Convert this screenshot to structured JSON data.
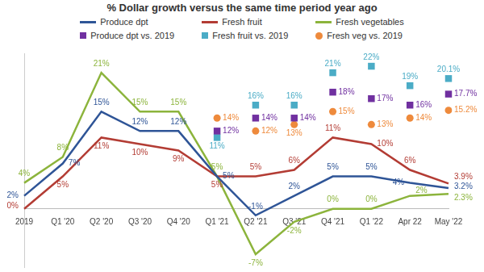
{
  "chart_data": {
    "type": "line",
    "title": "% Dollar growth versus the same time period year ago",
    "categories": [
      "2019",
      "Q1 '20",
      "Q2 '20",
      "Q3 '20",
      "Q4 '20",
      "Q1 '21",
      "Q2 '21",
      "Q3 '21",
      "Q4 '21",
      "Q1 '22",
      "Apr 22",
      "May '22"
    ],
    "series": [
      {
        "name": "Produce dpt",
        "type": "line",
        "marker": "none",
        "color": "#2f5597",
        "values": [
          2,
          7,
          15,
          12,
          12,
          5,
          -1,
          2,
          5,
          5,
          4,
          3.2
        ],
        "value_labels": [
          "2%",
          "7%",
          "15%",
          "12%",
          "12%",
          "5%",
          "-1%",
          "2%",
          "5%",
          "5%",
          "4%",
          "3.2%"
        ]
      },
      {
        "name": "Fresh fruit",
        "type": "line",
        "marker": "none",
        "color": "#b33c34",
        "values": [
          0,
          5,
          11,
          10,
          9,
          5,
          5,
          6,
          11,
          10,
          6,
          3.9
        ],
        "value_labels": [
          "0%",
          "5%",
          "11%",
          "10%",
          "9%",
          "5%",
          "5%",
          "6%",
          "11%",
          "10%",
          "6%",
          "3.9%"
        ]
      },
      {
        "name": "Fresh vegetables",
        "type": "line",
        "marker": "none",
        "color": "#8cb43c",
        "values": [
          4,
          8,
          21,
          15,
          15,
          5,
          -7,
          -2,
          0,
          0,
          2,
          2.3
        ],
        "value_labels": [
          "4%",
          "8%",
          "21%",
          "15%",
          "15%",
          "5%",
          "-7%",
          "-2%",
          "0%",
          "0%",
          "2%",
          "2.3%"
        ]
      },
      {
        "name": "Produce dpt vs. 2019",
        "type": "scatter",
        "marker": "square",
        "color": "#7030a0",
        "values": [
          null,
          null,
          null,
          null,
          null,
          12,
          14,
          14,
          18,
          17,
          16,
          17.7
        ],
        "value_labels": [
          null,
          null,
          null,
          null,
          null,
          "12%",
          "14%",
          "14%",
          "18%",
          "17%",
          "16%",
          "17.7%"
        ]
      },
      {
        "name": "Fresh fruit vs. 2019",
        "type": "scatter",
        "marker": "square",
        "color": "#4bacc6",
        "values": [
          null,
          null,
          null,
          null,
          null,
          11,
          16,
          16,
          21,
          22,
          19,
          20.1
        ],
        "value_labels": [
          null,
          null,
          null,
          null,
          null,
          "11%",
          "16%",
          "16%",
          "21%",
          "22%",
          "19%",
          "20.1%"
        ]
      },
      {
        "name": "Fresh veg vs. 2019",
        "type": "scatter",
        "marker": "circle",
        "color": "#ee8a3c",
        "values": [
          null,
          null,
          null,
          null,
          null,
          14,
          12,
          13,
          15,
          13,
          14,
          15.2
        ],
        "value_labels": [
          null,
          null,
          null,
          null,
          null,
          "14%",
          "12%",
          "13%",
          "15%",
          "13%",
          "14%",
          "15.2%"
        ]
      }
    ],
    "ylim": [
      -9,
      24
    ],
    "grid": false,
    "legend": "top",
    "data_labels": true,
    "tick_labels": "x"
  }
}
